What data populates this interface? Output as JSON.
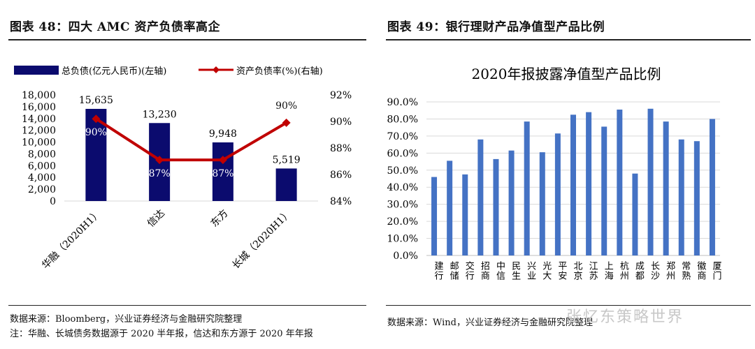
{
  "left": {
    "title": "图表 48：四大 AMC 资产负债率高企",
    "source": "数据来源：Bloomberg，兴业证券经济与金融研究院整理",
    "note": "注：华融、长城债务数据源于 2020 半年报，信达和东方源于 2020 年年报"
  },
  "right": {
    "title": "图表 49：银行理财产品净值型产品比例",
    "source": "数据来源：Wind，兴业证券经济与金融研究院整理"
  },
  "watermark": "张忆东策略世界",
  "chart_data": [
    {
      "type": "bar+line",
      "title": "",
      "categories": [
        "华融（2020H1）",
        "信达",
        "东方",
        "长城（2020H1）"
      ],
      "series": [
        {
          "name": "总负债(亿元人民币)(左轴)",
          "type": "bar",
          "axis": "left",
          "values": [
            15635,
            13230,
            9948,
            5519
          ],
          "labels": [
            "15,635",
            "13,230",
            "9,948",
            "5,519"
          ],
          "color": "#0b0b6e"
        },
        {
          "name": "资产负债率(%)(右轴)",
          "type": "line",
          "axis": "right",
          "values": [
            90.2,
            87.1,
            87.1,
            89.9
          ],
          "labels": [
            "90%",
            "87%",
            "87%",
            "90%"
          ],
          "color": "#c00000"
        }
      ],
      "left_axis": {
        "min": 0,
        "max": 18000,
        "step": 2000,
        "ticks": [
          "0",
          "2,000",
          "4,000",
          "6,000",
          "8,000",
          "10,000",
          "12,000",
          "14,000",
          "16,000",
          "18,000"
        ]
      },
      "right_axis": {
        "min": 84,
        "max": 92,
        "step": 2,
        "ticks": [
          "84%",
          "86%",
          "88%",
          "90%",
          "92%"
        ]
      }
    },
    {
      "type": "bar",
      "title": "2020年报披露净值型产品比例",
      "categories": [
        "建行",
        "邮储",
        "交行",
        "招商",
        "中信",
        "民生",
        "兴业",
        "光大",
        "平安",
        "北京",
        "江苏",
        "上海",
        "杭州",
        "成都",
        "长沙",
        "郑州",
        "常熟",
        "徽商",
        "厦门"
      ],
      "values": [
        46,
        55.5,
        47.5,
        68,
        56.5,
        61.5,
        78.5,
        60.5,
        71.5,
        82.5,
        84,
        75.5,
        85.5,
        48,
        86,
        78.5,
        68,
        67,
        80
      ],
      "ylim": [
        0,
        90
      ],
      "yticks": [
        "0.0%",
        "10.0%",
        "20.0%",
        "30.0%",
        "40.0%",
        "50.0%",
        "60.0%",
        "70.0%",
        "80.0%",
        "90.0%"
      ],
      "color": "#4472c4"
    }
  ]
}
